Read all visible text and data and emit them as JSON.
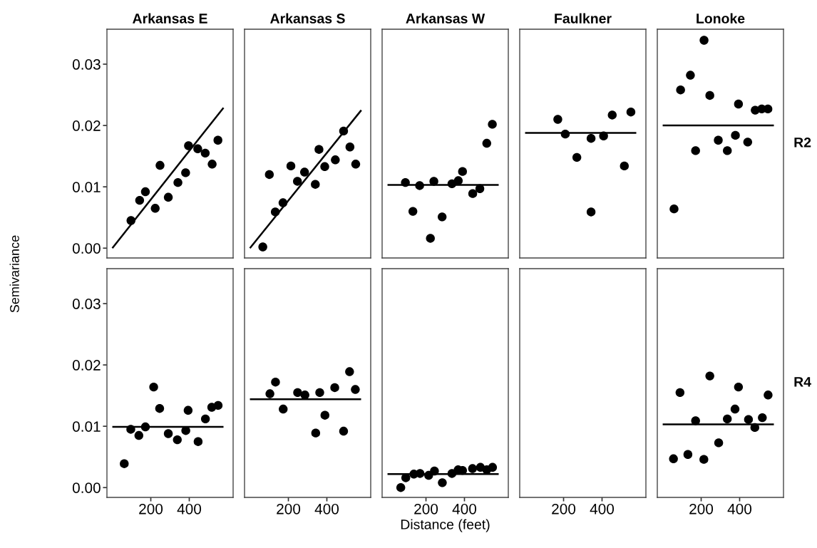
{
  "chart_data": [
    {
      "type": "scatter",
      "title": "Arkansas E",
      "ylabel": "Semivariance",
      "grid": false,
      "tick_labels": "y",
      "xlim": [
        -28,
        628
      ],
      "ylim": [
        -0.0016,
        0.0357
      ],
      "yticks": [
        {
          "value": 0,
          "label": "0.00"
        },
        {
          "value": 0.01,
          "label": "0.01"
        },
        {
          "value": 0.02,
          "label": "0.02"
        },
        {
          "value": 0.03,
          "label": "0.03"
        }
      ],
      "series": [
        {
          "type": "scatter",
          "marker": "circle",
          "color": "#000000",
          "x": [
            97,
            142,
            172,
            223,
            248,
            291,
            341,
            381,
            396,
            444,
            483,
            519,
            549
          ],
          "values": [
            0.0045,
            0.0078,
            0.0092,
            0.0065,
            0.0135,
            0.0083,
            0.0107,
            0.0123,
            0.0167,
            0.0162,
            0.0155,
            0.0137,
            0.0176
          ]
        },
        {
          "type": "line",
          "line_style": "solid",
          "color": "#000000",
          "x": [
            0,
            578
          ],
          "values": [
            0.0,
            0.0229
          ]
        }
      ]
    },
    {
      "type": "scatter",
      "title": "Arkansas S",
      "grid": false,
      "tick_labels": false,
      "xlim": [
        -28,
        628
      ],
      "ylim": [
        -0.0016,
        0.0357
      ],
      "series": [
        {
          "type": "scatter",
          "marker": "circle",
          "color": "#000000",
          "x": [
            67,
            101,
            132,
            172,
            213,
            247,
            284,
            340,
            359,
            389,
            444,
            487,
            520,
            550
          ],
          "values": [
            0.0002,
            0.012,
            0.0059,
            0.0074,
            0.0134,
            0.0109,
            0.0124,
            0.0104,
            0.0161,
            0.0133,
            0.0144,
            0.0191,
            0.0165,
            0.0137
          ]
        },
        {
          "type": "line",
          "line_style": "solid",
          "color": "#000000",
          "x": [
            0,
            579
          ],
          "values": [
            0.0,
            0.0225
          ]
        }
      ]
    },
    {
      "type": "scatter",
      "title": "Arkansas W",
      "grid": false,
      "tick_labels": false,
      "xlim": [
        -28,
        628
      ],
      "ylim": [
        -0.0016,
        0.0357
      ],
      "series": [
        {
          "type": "scatter",
          "marker": "circle",
          "color": "#000000",
          "x": [
            93,
            132,
            167,
            223,
            241,
            284,
            335,
            368,
            390,
            443,
            480,
            516,
            545
          ],
          "values": [
            0.0107,
            0.006,
            0.0102,
            0.0016,
            0.0109,
            0.0051,
            0.0105,
            0.011,
            0.0125,
            0.0089,
            0.0097,
            0.0171,
            0.0202
          ]
        },
        {
          "type": "line",
          "line_style": "solid",
          "color": "#000000",
          "x": [
            0,
            578
          ],
          "values": [
            0.0103,
            0.0103
          ]
        }
      ]
    },
    {
      "type": "scatter",
      "title": "Faulkner",
      "grid": false,
      "tick_labels": false,
      "xlim": [
        -28,
        628
      ],
      "ylim": [
        -0.0016,
        0.0357
      ],
      "series": [
        {
          "type": "scatter",
          "marker": "circle",
          "color": "#000000",
          "x": [
            170,
            209,
            269,
            343,
            343,
            408,
            453,
            516,
            550
          ],
          "values": [
            0.021,
            0.0186,
            0.0148,
            0.0179,
            0.0059,
            0.0183,
            0.0217,
            0.0134,
            0.0222
          ]
        },
        {
          "type": "line",
          "line_style": "solid",
          "color": "#000000",
          "x": [
            0,
            578
          ],
          "values": [
            0.0188,
            0.0188
          ]
        }
      ]
    },
    {
      "type": "scatter",
      "title": "Lonoke",
      "annotations": [
        "R2"
      ],
      "grid": false,
      "tick_labels": false,
      "xlim": [
        -28,
        628
      ],
      "ylim": [
        -0.0016,
        0.0357
      ],
      "series": [
        {
          "type": "scatter",
          "marker": "circle",
          "color": "#000000",
          "x": [
            59,
            93,
            144,
            171,
            215,
            245,
            289,
            336,
            378,
            394,
            442,
            481,
            515,
            547
          ],
          "values": [
            0.0064,
            0.0258,
            0.0282,
            0.0159,
            0.0339,
            0.0249,
            0.0176,
            0.0159,
            0.0184,
            0.0235,
            0.0173,
            0.0225,
            0.0227,
            0.0227
          ]
        },
        {
          "type": "line",
          "line_style": "solid",
          "color": "#000000",
          "x": [
            0,
            578
          ],
          "values": [
            0.02,
            0.02
          ]
        }
      ]
    },
    {
      "type": "scatter",
      "grid": false,
      "xlim": [
        -28,
        628
      ],
      "ylim": [
        -0.0016,
        0.0357
      ],
      "xticks": [
        200,
        400
      ],
      "yticks": [
        {
          "value": 0,
          "label": "0.00"
        },
        {
          "value": 0.01,
          "label": "0.01"
        },
        {
          "value": 0.02,
          "label": "0.02"
        },
        {
          "value": 0.03,
          "label": "0.03"
        }
      ],
      "series": [
        {
          "type": "scatter",
          "marker": "circle",
          "color": "#000000",
          "x": [
            62,
            96,
            138,
            172,
            215,
            246,
            291,
            338,
            382,
            394,
            446,
            484,
            517,
            550
          ],
          "values": [
            0.0039,
            0.0095,
            0.0085,
            0.0099,
            0.0164,
            0.0129,
            0.0088,
            0.0078,
            0.0093,
            0.0126,
            0.0075,
            0.0112,
            0.0131,
            0.0134
          ]
        },
        {
          "type": "line",
          "line_style": "solid",
          "color": "#000000",
          "x": [
            0,
            578
          ],
          "values": [
            0.0099,
            0.0099
          ]
        }
      ]
    },
    {
      "type": "scatter",
      "grid": false,
      "tick_labels": "x",
      "xlim": [
        -28,
        628
      ],
      "ylim": [
        -0.0016,
        0.0357
      ],
      "xticks": [
        200,
        400
      ],
      "series": [
        {
          "type": "scatter",
          "marker": "circle",
          "color": "#000000",
          "x": [
            104,
            133,
            173,
            248,
            286,
            363,
            342,
            390,
            441,
            487,
            518,
            548
          ],
          "values": [
            0.0153,
            0.0172,
            0.0128,
            0.0155,
            0.0151,
            0.0155,
            0.0089,
            0.0118,
            0.0163,
            0.0092,
            0.0189,
            0.016
          ]
        },
        {
          "type": "line",
          "line_style": "solid",
          "color": "#000000",
          "x": [
            0,
            578
          ],
          "values": [
            0.0144,
            0.0144
          ]
        }
      ]
    },
    {
      "type": "scatter",
      "xlabel": "Distance (feet)",
      "grid": false,
      "tick_labels": "x",
      "xlim": [
        -28,
        628
      ],
      "ylim": [
        -0.0016,
        0.0357
      ],
      "xticks": [
        200,
        400
      ],
      "series": [
        {
          "type": "scatter",
          "marker": "circle",
          "color": "#000000",
          "x": [
            69,
            95,
            137,
            169,
            214,
            244,
            285,
            335,
            367,
            390,
            442,
            483,
            516,
            546
          ],
          "values": [
            0.0,
            0.0016,
            0.0022,
            0.0023,
            0.002,
            0.0027,
            0.0008,
            0.0023,
            0.0029,
            0.0028,
            0.0031,
            0.0033,
            0.0029,
            0.0033
          ]
        },
        {
          "type": "line",
          "line_style": "solid",
          "color": "#000000",
          "x": [
            0,
            578
          ],
          "values": [
            0.0022,
            0.0022
          ]
        }
      ]
    },
    {
      "type": "scatter",
      "grid": false,
      "tick_labels": "x",
      "xlim": [
        -28,
        628
      ],
      "ylim": [
        -0.0016,
        0.0357
      ],
      "xticks": [
        200,
        400
      ]
    },
    {
      "type": "scatter",
      "annotations": [
        "R4"
      ],
      "grid": false,
      "tick_labels": "x",
      "xlim": [
        -28,
        628
      ],
      "ylim": [
        -0.0016,
        0.0357
      ],
      "xticks": [
        200,
        400
      ],
      "series": [
        {
          "type": "scatter",
          "marker": "circle",
          "color": "#000000",
          "x": [
            56,
            90,
            131,
            171,
            214,
            245,
            291,
            336,
            376,
            394,
            446,
            479,
            518,
            548
          ],
          "values": [
            0.0047,
            0.0155,
            0.0054,
            0.0109,
            0.0046,
            0.0182,
            0.0073,
            0.0112,
            0.0128,
            0.0164,
            0.0111,
            0.0098,
            0.0114,
            0.0151
          ]
        },
        {
          "type": "line",
          "line_style": "solid",
          "color": "#000000",
          "x": [
            0,
            578
          ],
          "values": [
            0.0103,
            0.0103
          ]
        }
      ]
    }
  ]
}
